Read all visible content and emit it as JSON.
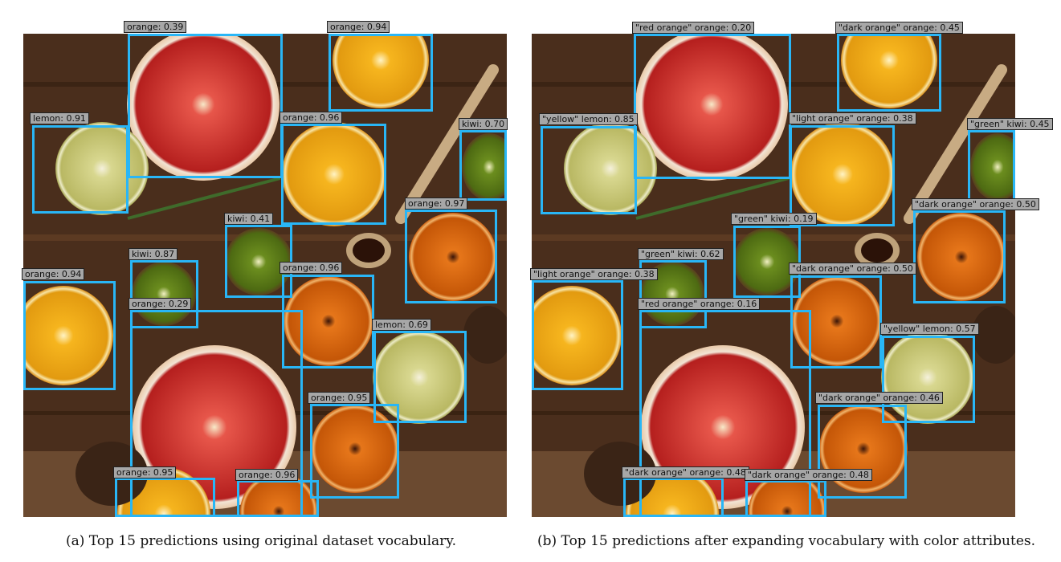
{
  "panel_a": {
    "caption": "(a)  Top 15 predictions using original dataset vocabulary.",
    "labels": [
      "orange: 0.39",
      "orange: 0.94",
      "lemon: 0.91",
      "orange: 0.96",
      "kiwi: 0.70",
      "orange: 0.97",
      "kiwi: 0.41",
      "kiwi: 0.87",
      "orange: 0.96",
      "orange: 0.94",
      "orange: 0.29",
      "lemon: 0.69",
      "orange: 0.95",
      "orange: 0.95",
      "orange: 0.96"
    ]
  },
  "panel_b": {
    "caption": "(b)  Top 15 predictions after expanding vocabulary with color attributes.",
    "labels": [
      "\"red orange\" orange: 0.20",
      "\"dark orange\" orange: 0.45",
      "\"yellow\" lemon: 0.85",
      "\"light orange\" orange: 0.38",
      "\"green\" kiwi: 0.45",
      "\"dark orange\" orange: 0.50",
      "\"green\" kiwi: 0.19",
      "\"green\" kiwi: 0.62",
      "\"dark orange\" orange: 0.50",
      "\"light orange\" orange: 0.38",
      "\"red orange\" orange: 0.16",
      "\"yellow\" lemon: 0.57",
      "\"dark orange\" orange: 0.46",
      "\"dark orange\" orange: 0.48",
      "\"dark orange\" orange: 0.48"
    ]
  },
  "colors": {
    "box": "#29b6f6",
    "label_bg": "#a7a7a7",
    "wood": "#4a2e1c"
  }
}
